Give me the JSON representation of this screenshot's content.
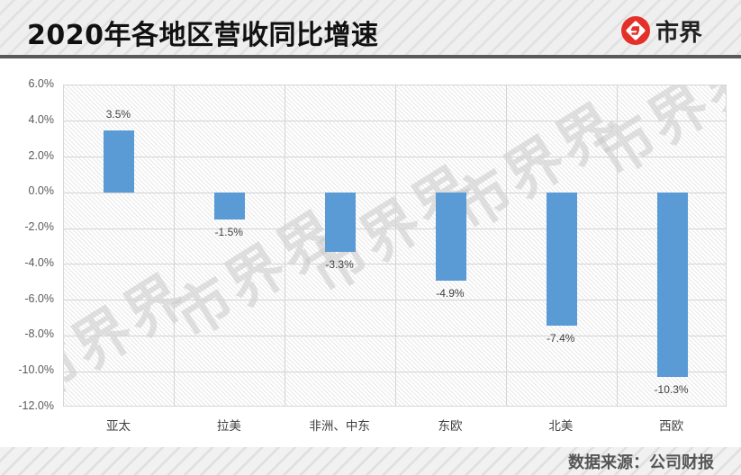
{
  "header": {
    "title": "2020年各地区营收同比增速",
    "brand": "市界",
    "brand_color": "#e5302a",
    "brand_icon": "shijie-logo-icon"
  },
  "footer": {
    "source": "数据来源：公司财报"
  },
  "watermark": "市界",
  "chart_data": {
    "type": "bar",
    "title": "2020年各地区营收同比增速",
    "categories": [
      "亚太",
      "拉美",
      "非洲、中东",
      "东欧",
      "北美",
      "西欧"
    ],
    "values": [
      3.5,
      -1.5,
      -3.3,
      -4.9,
      -7.4,
      -10.3
    ],
    "value_labels": [
      "3.5%",
      "-1.5%",
      "-3.3%",
      "-4.9%",
      "-7.4%",
      "-10.3%"
    ],
    "unit": "%",
    "xlabel": "",
    "ylabel": "",
    "ylim": [
      -12,
      6
    ],
    "yticks": [
      "6.0%",
      "4.0%",
      "2.0%",
      "0.0%",
      "-2.0%",
      "-4.0%",
      "-6.0%",
      "-8.0%",
      "-10.0%",
      "-12.0%"
    ],
    "grid": true,
    "legend": false,
    "bar_color": "#5b9bd5",
    "source": "数据来源：公司财报"
  }
}
